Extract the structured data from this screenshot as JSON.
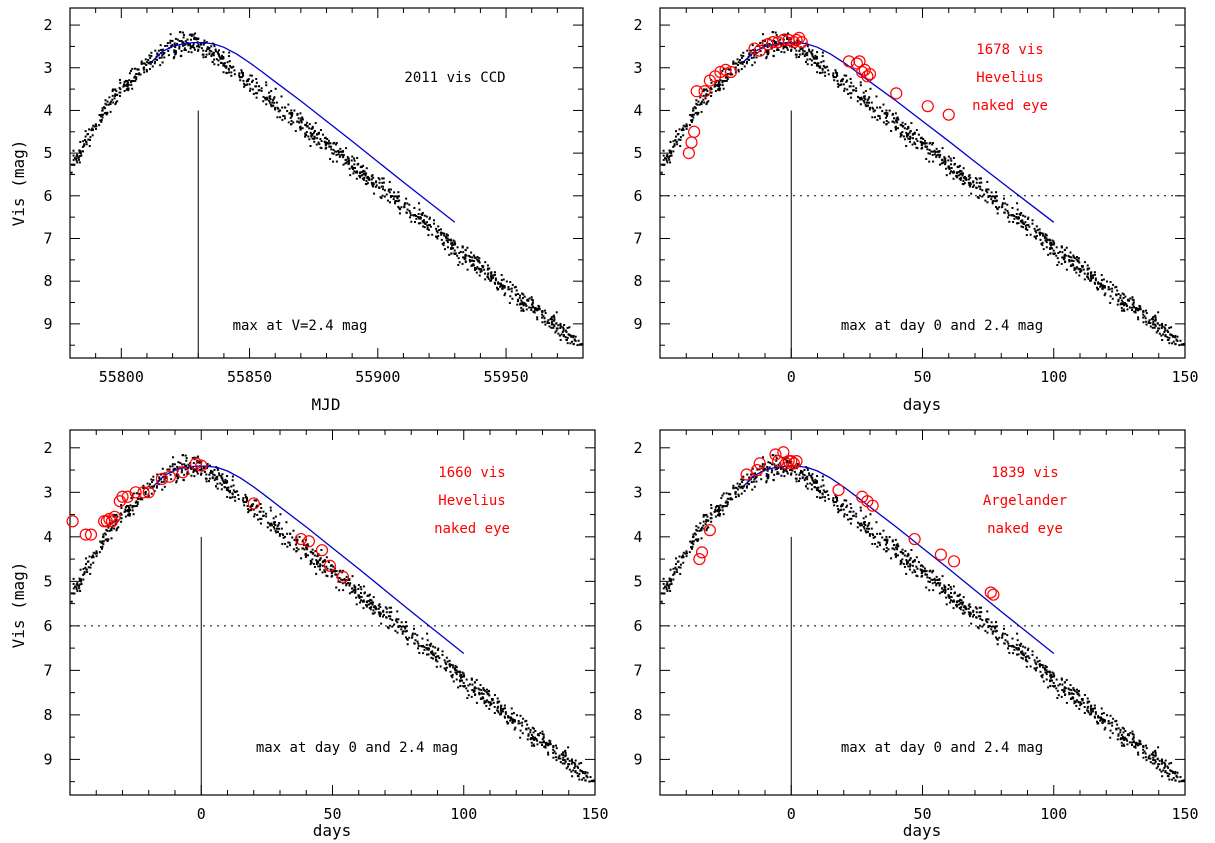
{
  "chart_data": [
    {
      "type": "scatter",
      "xlabel": "MJD",
      "ylabel": "Vis (mag)",
      "xlim": [
        55780,
        55980
      ],
      "ylim": [
        9.8,
        1.6
      ],
      "y_inverted": true,
      "xticks": [
        55800,
        55850,
        55900,
        55950
      ],
      "xtick_labels": [
        "55800",
        "55850",
        "55900",
        "55950"
      ],
      "yticks": [
        2,
        3,
        4,
        5,
        6,
        7,
        8,
        9
      ],
      "ytick_labels": [
        "2",
        "3",
        "4",
        "5",
        "6",
        "7",
        "8",
        "9"
      ],
      "annotations": [
        "2011 vis CCD"
      ],
      "bottom_note": "max at V=2.4 mag",
      "max_marker_x": 55830,
      "max_marker_y_from": 4.0,
      "threshold_line": null,
      "fit_curve": {
        "x": [
          55812,
          55816,
          55820,
          55824,
          55828,
          55832,
          55836,
          55840,
          55845,
          55850,
          55855,
          55860,
          55870,
          55880,
          55890,
          55900,
          55910,
          55920,
          55930
        ],
        "y": [
          2.85,
          2.62,
          2.5,
          2.44,
          2.41,
          2.41,
          2.44,
          2.52,
          2.68,
          2.88,
          3.1,
          3.33,
          3.78,
          4.25,
          4.72,
          5.2,
          5.68,
          6.15,
          6.62
        ]
      },
      "black_points": {
        "peak_x": 55830,
        "peak_mag": 2.4,
        "x_start": 55780,
        "x_end": 55980,
        "rise_slope": 0.055,
        "rise_curv": 0.0012,
        "fall_slope": 0.048,
        "scatter": 0.25,
        "count": 1150
      },
      "red_points": []
    },
    {
      "type": "scatter",
      "xlabel": "days",
      "ylabel": "",
      "xlim": [
        -50,
        150
      ],
      "ylim": [
        9.8,
        1.6
      ],
      "y_inverted": true,
      "xticks": [
        0,
        50,
        100,
        150
      ],
      "xtick_labels": [
        "0",
        "50",
        "100",
        "150"
      ],
      "yticks": [
        2,
        3,
        4,
        5,
        6,
        7,
        8,
        9
      ],
      "ytick_labels": [
        "2",
        "3",
        "4",
        "5",
        "6",
        "7",
        "8",
        "9"
      ],
      "annotations": [
        "1678 vis",
        "Hevelius",
        "naked eye"
      ],
      "bottom_note": "max at day 0 and 2.4 mag",
      "max_marker_x": 0,
      "max_marker_y_from": 4.0,
      "threshold_line": 6.0,
      "fit_curve": {
        "x": [
          -18,
          -14,
          -10,
          -6,
          -2,
          2,
          6,
          10,
          15,
          20,
          25,
          30,
          40,
          50,
          60,
          70,
          80,
          90,
          100
        ],
        "y": [
          2.85,
          2.62,
          2.5,
          2.44,
          2.41,
          2.41,
          2.44,
          2.52,
          2.68,
          2.88,
          3.1,
          3.33,
          3.78,
          4.25,
          4.72,
          5.2,
          5.68,
          6.15,
          6.62
        ]
      },
      "black_points": {
        "peak_x": 0,
        "peak_mag": 2.4,
        "x_start": -50,
        "x_end": 150,
        "rise_slope": 0.055,
        "rise_curv": 0.0012,
        "fall_slope": 0.048,
        "scatter": 0.25,
        "count": 1150
      },
      "red_points": {
        "x": [
          -39,
          -38,
          -37,
          -36,
          -33,
          -31,
          -29,
          -27,
          -25,
          -23,
          -14,
          -12,
          -9,
          -7,
          -5,
          -3,
          -1,
          1,
          2,
          3,
          4,
          22,
          25,
          26,
          27,
          28,
          29,
          30,
          40,
          52,
          60
        ],
        "y": [
          5.0,
          4.75,
          4.5,
          3.55,
          3.55,
          3.3,
          3.2,
          3.1,
          3.05,
          3.1,
          2.55,
          2.6,
          2.45,
          2.4,
          2.4,
          2.35,
          2.35,
          2.4,
          2.35,
          2.3,
          2.4,
          2.85,
          2.9,
          2.85,
          3.1,
          3.05,
          3.2,
          3.15,
          3.6,
          3.9,
          4.1
        ]
      }
    },
    {
      "type": "scatter",
      "xlabel": "days",
      "ylabel": "Vis (mag)",
      "xlim": [
        -50,
        150
      ],
      "ylim": [
        9.8,
        1.6
      ],
      "y_inverted": true,
      "xticks": [
        0,
        50,
        100,
        150
      ],
      "xtick_labels": [
        "0",
        "50",
        "100",
        "150"
      ],
      "yticks": [
        2,
        3,
        4,
        5,
        6,
        7,
        8,
        9
      ],
      "ytick_labels": [
        "2",
        "3",
        "4",
        "5",
        "6",
        "7",
        "8",
        "9"
      ],
      "annotations": [
        "1660 vis",
        "Hevelius",
        "naked eye"
      ],
      "bottom_note": "max at day 0 and 2.4 mag",
      "max_marker_x": 0,
      "max_marker_y_from": 4.0,
      "threshold_line": 6.0,
      "fit_curve": {
        "x": [
          -18,
          -14,
          -10,
          -6,
          -2,
          2,
          6,
          10,
          15,
          20,
          25,
          30,
          40,
          50,
          60,
          70,
          80,
          90,
          100
        ],
        "y": [
          2.85,
          2.62,
          2.5,
          2.44,
          2.41,
          2.41,
          2.44,
          2.52,
          2.68,
          2.88,
          3.1,
          3.33,
          3.78,
          4.25,
          4.72,
          5.2,
          5.68,
          6.15,
          6.62
        ]
      },
      "black_points": {
        "peak_x": 0,
        "peak_mag": 2.4,
        "x_start": -50,
        "x_end": 150,
        "rise_slope": 0.055,
        "rise_curv": 0.0012,
        "fall_slope": 0.048,
        "scatter": 0.25,
        "count": 1150
      },
      "red_points": {
        "x": [
          -49,
          -44,
          -42,
          -37,
          -36,
          -35,
          -34,
          -33,
          -31,
          -30,
          -28,
          -25,
          -22,
          -20,
          -15,
          -12,
          -7,
          -2,
          0,
          20,
          38,
          41,
          46,
          49,
          54
        ],
        "y": [
          3.65,
          3.95,
          3.95,
          3.65,
          3.65,
          3.6,
          3.65,
          3.55,
          3.2,
          3.1,
          3.1,
          3.0,
          3.0,
          3.0,
          2.7,
          2.65,
          2.55,
          2.35,
          2.4,
          3.25,
          4.05,
          4.1,
          4.3,
          4.65,
          4.9
        ]
      }
    },
    {
      "type": "scatter",
      "xlabel": "days",
      "ylabel": "",
      "xlim": [
        -50,
        150
      ],
      "ylim": [
        9.8,
        1.6
      ],
      "y_inverted": true,
      "xticks": [
        0,
        50,
        100,
        150
      ],
      "xtick_labels": [
        "0",
        "50",
        "100",
        "150"
      ],
      "yticks": [
        2,
        3,
        4,
        5,
        6,
        7,
        8,
        9
      ],
      "ytick_labels": [
        "2",
        "3",
        "4",
        "5",
        "6",
        "7",
        "8",
        "9"
      ],
      "annotations": [
        "1839 vis",
        "Argelander",
        "naked eye"
      ],
      "bottom_note": "max at day 0 and 2.4 mag",
      "max_marker_x": 0,
      "max_marker_y_from": 4.0,
      "threshold_line": 6.0,
      "fit_curve": {
        "x": [
          -18,
          -14,
          -10,
          -6,
          -2,
          2,
          6,
          10,
          15,
          20,
          25,
          30,
          40,
          50,
          60,
          70,
          80,
          90,
          100
        ],
        "y": [
          2.85,
          2.62,
          2.5,
          2.44,
          2.41,
          2.41,
          2.44,
          2.52,
          2.68,
          2.88,
          3.1,
          3.33,
          3.78,
          4.25,
          4.72,
          5.2,
          5.68,
          6.15,
          6.62
        ]
      },
      "black_points": {
        "peak_x": 0,
        "peak_mag": 2.4,
        "x_start": -50,
        "x_end": 150,
        "rise_slope": 0.055,
        "rise_curv": 0.0012,
        "fall_slope": 0.048,
        "scatter": 0.25,
        "count": 1150
      },
      "red_points": {
        "x": [
          -35,
          -34,
          -31,
          -17,
          -13,
          -12,
          -6,
          -5,
          -3,
          -2,
          -1,
          0,
          1,
          2,
          18,
          27,
          29,
          31,
          47,
          57,
          62,
          76,
          77
        ],
        "y": [
          4.5,
          4.35,
          3.85,
          2.6,
          2.5,
          2.35,
          2.15,
          2.3,
          2.1,
          2.35,
          2.3,
          2.3,
          2.35,
          2.3,
          2.95,
          3.1,
          3.2,
          3.3,
          4.05,
          4.4,
          4.55,
          5.25,
          5.3
        ]
      }
    }
  ]
}
